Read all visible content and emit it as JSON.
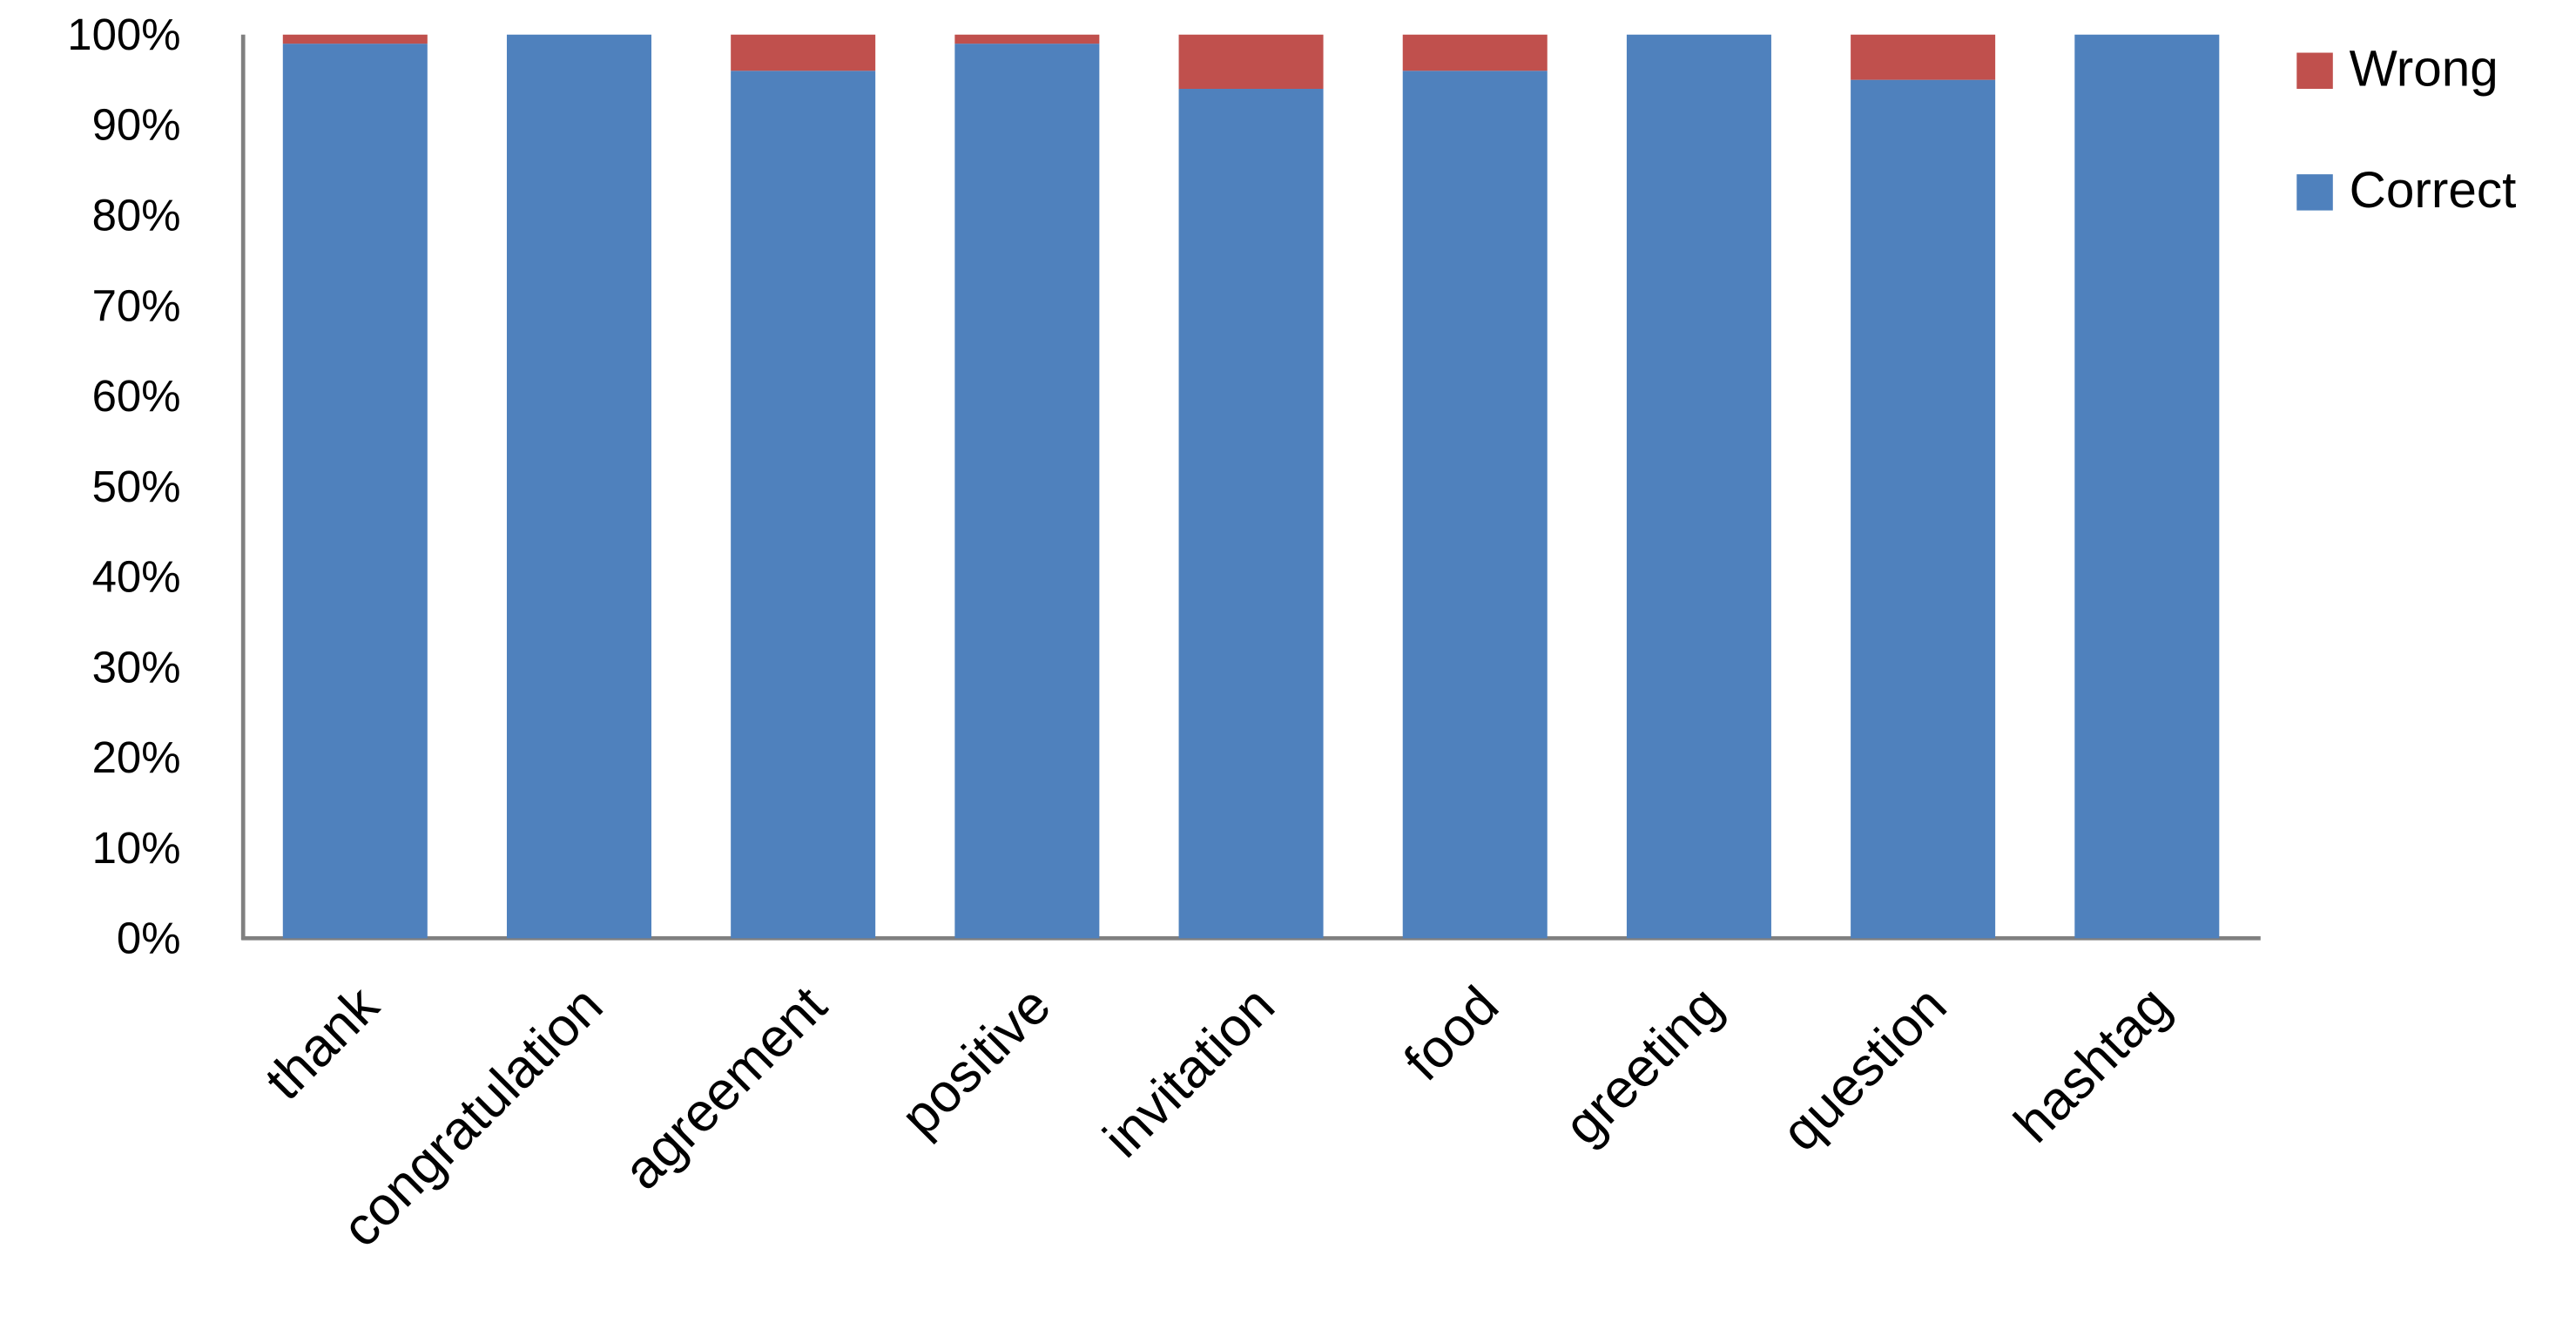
{
  "chart_data": {
    "type": "stacked_bar_percent",
    "categories": [
      "thank",
      "congratulation",
      "agreement",
      "positive",
      "invitation",
      "food",
      "greeting",
      "question",
      "hashtag"
    ],
    "series": [
      {
        "name": "Correct",
        "color": "#4f81bd",
        "values": [
          99,
          100,
          96,
          99,
          94,
          96,
          100,
          95,
          100
        ]
      },
      {
        "name": "Wrong",
        "color": "#c0504d",
        "values": [
          1,
          0,
          4,
          1,
          6,
          4,
          0,
          5,
          0
        ]
      }
    ],
    "ylim": [
      0,
      100
    ],
    "yticks": [
      {
        "value": 0,
        "label": "0%"
      },
      {
        "value": 10,
        "label": "10%"
      },
      {
        "value": 20,
        "label": "20%"
      },
      {
        "value": 30,
        "label": "30%"
      },
      {
        "value": 40,
        "label": "40%"
      },
      {
        "value": 50,
        "label": "50%"
      },
      {
        "value": 60,
        "label": "60%"
      },
      {
        "value": 70,
        "label": "70%"
      },
      {
        "value": 80,
        "label": "80%"
      },
      {
        "value": 90,
        "label": "90%"
      },
      {
        "value": 100,
        "label": "100%"
      }
    ],
    "grid": false,
    "legend": "right"
  }
}
